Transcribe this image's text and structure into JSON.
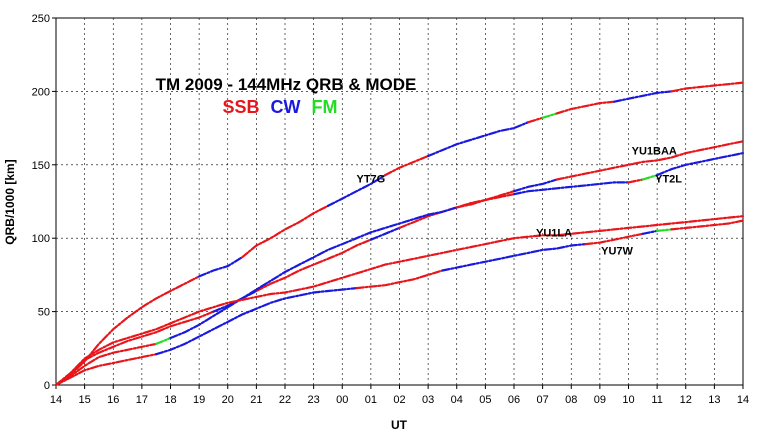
{
  "chart_data": {
    "type": "line",
    "title": "TM 2009 - 144MHz QRB & MODE",
    "mode_legend": [
      {
        "name": "SSB",
        "color": "#e8161b"
      },
      {
        "name": "CW",
        "color": "#1a1adf"
      },
      {
        "name": "FM",
        "color": "#22dd22"
      }
    ],
    "xlabel": "UT",
    "ylabel": "QRB/1000 [km]",
    "ylim": [
      0,
      250
    ],
    "yticks": [
      0,
      50,
      100,
      150,
      200,
      250
    ],
    "xlim": [
      0,
      24
    ],
    "xtick_labels": [
      "14",
      "15",
      "16",
      "17",
      "18",
      "19",
      "20",
      "21",
      "22",
      "23",
      "00",
      "01",
      "02",
      "03",
      "04",
      "05",
      "06",
      "07",
      "08",
      "09",
      "10",
      "11",
      "12",
      "13",
      "14"
    ],
    "grid": true,
    "series": [
      {
        "name": "YT7G",
        "label_at": [
          11,
          138
        ],
        "points": [
          [
            0,
            0
          ],
          [
            0.5,
            7
          ],
          [
            1,
            16
          ],
          [
            1.5,
            28
          ],
          [
            2,
            38
          ],
          [
            2.5,
            46
          ],
          [
            3,
            53
          ],
          [
            3.5,
            59
          ],
          [
            4,
            64
          ],
          [
            4.5,
            69
          ],
          [
            5,
            74
          ],
          [
            5.5,
            78
          ],
          [
            6,
            81
          ],
          [
            6.5,
            87
          ],
          [
            7,
            95
          ],
          [
            7.5,
            100
          ],
          [
            8,
            106
          ],
          [
            8.5,
            111
          ],
          [
            9,
            117
          ],
          [
            9.5,
            122
          ],
          [
            10,
            127
          ],
          [
            10.5,
            132
          ],
          [
            11,
            137
          ],
          [
            11.5,
            143
          ],
          [
            12,
            148
          ],
          [
            12.5,
            152
          ],
          [
            13,
            156
          ],
          [
            13.5,
            160
          ],
          [
            14,
            164
          ],
          [
            14.5,
            167
          ],
          [
            15,
            170
          ],
          [
            15.5,
            173
          ],
          [
            16,
            175
          ],
          [
            16.5,
            179
          ],
          [
            17,
            182
          ],
          [
            17.5,
            185
          ],
          [
            18,
            188
          ],
          [
            18.5,
            190
          ],
          [
            19,
            192
          ],
          [
            19.5,
            193
          ],
          [
            20,
            195
          ],
          [
            20.5,
            197
          ],
          [
            21,
            199
          ],
          [
            21.5,
            200
          ],
          [
            22,
            202
          ],
          [
            22.5,
            203
          ],
          [
            23,
            204
          ],
          [
            23.5,
            205
          ],
          [
            24,
            206
          ]
        ],
        "mode_segments": [
          {
            "from": 0,
            "to": 5,
            "mode": "SSB"
          },
          {
            "from": 5,
            "to": 6.5,
            "mode": "CW"
          },
          {
            "from": 6.5,
            "to": 9.5,
            "mode": "SSB"
          },
          {
            "from": 9.5,
            "to": 11.5,
            "mode": "CW"
          },
          {
            "from": 11.5,
            "to": 13,
            "mode": "SSB"
          },
          {
            "from": 13,
            "to": 16.5,
            "mode": "CW"
          },
          {
            "from": 16.5,
            "to": 17,
            "mode": "SSB"
          },
          {
            "from": 17,
            "to": 17.5,
            "mode": "FM"
          },
          {
            "from": 17.5,
            "to": 19.5,
            "mode": "SSB"
          },
          {
            "from": 19.5,
            "to": 21.5,
            "mode": "CW"
          },
          {
            "from": 21.5,
            "to": 24,
            "mode": "SSB"
          }
        ]
      },
      {
        "name": "YU1BAA",
        "label_at": [
          20.9,
          157
        ],
        "points": [
          [
            0,
            0
          ],
          [
            0.5,
            8
          ],
          [
            1,
            17
          ],
          [
            1.5,
            22
          ],
          [
            2,
            26
          ],
          [
            2.5,
            30
          ],
          [
            3,
            33
          ],
          [
            3.5,
            36
          ],
          [
            4,
            40
          ],
          [
            4.5,
            43
          ],
          [
            5,
            46
          ],
          [
            5.5,
            50
          ],
          [
            6,
            54
          ],
          [
            6.5,
            59
          ],
          [
            7,
            64
          ],
          [
            7.5,
            69
          ],
          [
            8,
            73
          ],
          [
            8.5,
            78
          ],
          [
            9,
            82
          ],
          [
            9.5,
            86
          ],
          [
            10,
            90
          ],
          [
            10.5,
            95
          ],
          [
            11,
            99
          ],
          [
            11.5,
            103
          ],
          [
            12,
            107
          ],
          [
            12.5,
            111
          ],
          [
            13,
            115
          ],
          [
            13.5,
            118
          ],
          [
            14,
            121
          ],
          [
            14.5,
            124
          ],
          [
            15,
            126
          ],
          [
            15.5,
            129
          ],
          [
            16,
            132
          ],
          [
            16.5,
            135
          ],
          [
            17,
            137
          ],
          [
            17.5,
            140
          ],
          [
            18,
            142
          ],
          [
            18.5,
            144
          ],
          [
            19,
            146
          ],
          [
            19.5,
            148
          ],
          [
            20,
            150
          ],
          [
            20.5,
            152
          ],
          [
            21,
            153
          ],
          [
            21.5,
            155
          ],
          [
            22,
            158
          ],
          [
            22.5,
            160
          ],
          [
            23,
            162
          ],
          [
            23.5,
            164
          ],
          [
            24,
            166
          ]
        ],
        "mode_segments": [
          {
            "from": 0,
            "to": 5.5,
            "mode": "SSB"
          },
          {
            "from": 5.5,
            "to": 7,
            "mode": "CW"
          },
          {
            "from": 7,
            "to": 11,
            "mode": "SSB"
          },
          {
            "from": 11,
            "to": 12,
            "mode": "CW"
          },
          {
            "from": 12,
            "to": 16,
            "mode": "SSB"
          },
          {
            "from": 16,
            "to": 17.5,
            "mode": "CW"
          },
          {
            "from": 17.5,
            "to": 24,
            "mode": "SSB"
          }
        ]
      },
      {
        "name": "YT2L",
        "label_at": [
          21.4,
          138
        ],
        "points": [
          [
            0,
            0
          ],
          [
            0.5,
            6
          ],
          [
            1,
            13
          ],
          [
            1.5,
            19
          ],
          [
            2,
            22
          ],
          [
            2.5,
            24
          ],
          [
            3,
            26
          ],
          [
            3.5,
            28
          ],
          [
            4,
            32
          ],
          [
            4.5,
            36
          ],
          [
            5,
            41
          ],
          [
            5.5,
            47
          ],
          [
            6,
            53
          ],
          [
            6.5,
            59
          ],
          [
            7,
            65
          ],
          [
            7.5,
            71
          ],
          [
            8,
            77
          ],
          [
            8.5,
            82
          ],
          [
            9,
            87
          ],
          [
            9.5,
            92
          ],
          [
            10,
            96
          ],
          [
            10.5,
            100
          ],
          [
            11,
            104
          ],
          [
            11.5,
            107
          ],
          [
            12,
            110
          ],
          [
            12.5,
            113
          ],
          [
            13,
            116
          ],
          [
            13.5,
            118
          ],
          [
            14,
            121
          ],
          [
            14.5,
            123
          ],
          [
            15,
            126
          ],
          [
            15.5,
            128
          ],
          [
            16,
            130
          ],
          [
            16.5,
            132
          ],
          [
            17,
            133
          ],
          [
            17.5,
            134
          ],
          [
            18,
            135
          ],
          [
            18.5,
            136
          ],
          [
            19,
            137
          ],
          [
            19.5,
            138
          ],
          [
            20,
            138
          ],
          [
            20.5,
            140
          ],
          [
            21,
            143
          ],
          [
            21.5,
            147
          ],
          [
            22,
            150
          ],
          [
            22.5,
            152
          ],
          [
            23,
            154
          ],
          [
            23.5,
            156
          ],
          [
            24,
            158
          ]
        ],
        "mode_segments": [
          {
            "from": 0,
            "to": 3.5,
            "mode": "SSB"
          },
          {
            "from": 3.5,
            "to": 4,
            "mode": "FM"
          },
          {
            "from": 4,
            "to": 14,
            "mode": "CW"
          },
          {
            "from": 14,
            "to": 16,
            "mode": "SSB"
          },
          {
            "from": 16,
            "to": 20,
            "mode": "CW"
          },
          {
            "from": 20,
            "to": 20.5,
            "mode": "SSB"
          },
          {
            "from": 20.5,
            "to": 21,
            "mode": "FM"
          },
          {
            "from": 21,
            "to": 24,
            "mode": "CW"
          }
        ]
      },
      {
        "name": "YU1LA",
        "label_at": [
          17.4,
          101
        ],
        "points": [
          [
            0,
            0
          ],
          [
            0.5,
            8
          ],
          [
            1,
            18
          ],
          [
            1.5,
            24
          ],
          [
            2,
            29
          ],
          [
            2.5,
            32
          ],
          [
            3,
            35
          ],
          [
            3.5,
            38
          ],
          [
            4,
            42
          ],
          [
            4.5,
            46
          ],
          [
            5,
            50
          ],
          [
            5.5,
            53
          ],
          [
            6,
            56
          ],
          [
            6.5,
            58
          ],
          [
            7,
            60
          ],
          [
            7.5,
            62
          ],
          [
            8,
            63
          ],
          [
            8.5,
            65
          ],
          [
            9,
            67
          ],
          [
            9.5,
            70
          ],
          [
            10,
            73
          ],
          [
            10.5,
            76
          ],
          [
            11,
            79
          ],
          [
            11.5,
            82
          ],
          [
            12,
            84
          ],
          [
            12.5,
            86
          ],
          [
            13,
            88
          ],
          [
            13.5,
            90
          ],
          [
            14,
            92
          ],
          [
            14.5,
            94
          ],
          [
            15,
            96
          ],
          [
            15.5,
            98
          ],
          [
            16,
            100
          ],
          [
            16.5,
            101
          ],
          [
            17,
            102
          ],
          [
            17.5,
            102
          ],
          [
            18,
            103
          ],
          [
            18.5,
            104
          ],
          [
            19,
            105
          ],
          [
            19.5,
            106
          ],
          [
            20,
            107
          ],
          [
            20.5,
            108
          ],
          [
            21,
            109
          ],
          [
            21.5,
            110
          ],
          [
            22,
            111
          ],
          [
            22.5,
            112
          ],
          [
            23,
            113
          ],
          [
            23.5,
            114
          ],
          [
            24,
            115
          ]
        ],
        "mode_segments": [
          {
            "from": 0,
            "to": 24,
            "mode": "SSB"
          }
        ]
      },
      {
        "name": "YU7W",
        "label_at": [
          19.6,
          89
        ],
        "points": [
          [
            0,
            0
          ],
          [
            0.5,
            5
          ],
          [
            1,
            10
          ],
          [
            1.5,
            13
          ],
          [
            2,
            15
          ],
          [
            2.5,
            17
          ],
          [
            3,
            19
          ],
          [
            3.5,
            21
          ],
          [
            4,
            24
          ],
          [
            4.5,
            28
          ],
          [
            5,
            33
          ],
          [
            5.5,
            38
          ],
          [
            6,
            43
          ],
          [
            6.5,
            48
          ],
          [
            7,
            52
          ],
          [
            7.5,
            56
          ],
          [
            8,
            59
          ],
          [
            8.5,
            61
          ],
          [
            9,
            63
          ],
          [
            9.5,
            64
          ],
          [
            10,
            65
          ],
          [
            10.5,
            66
          ],
          [
            11,
            67
          ],
          [
            11.5,
            68
          ],
          [
            12,
            70
          ],
          [
            12.5,
            72
          ],
          [
            13,
            75
          ],
          [
            13.5,
            78
          ],
          [
            14,
            80
          ],
          [
            14.5,
            82
          ],
          [
            15,
            84
          ],
          [
            15.5,
            86
          ],
          [
            16,
            88
          ],
          [
            16.5,
            90
          ],
          [
            17,
            92
          ],
          [
            17.5,
            93
          ],
          [
            18,
            95
          ],
          [
            18.5,
            96
          ],
          [
            19,
            97
          ],
          [
            19.5,
            99
          ],
          [
            20,
            101
          ],
          [
            20.5,
            103
          ],
          [
            21,
            105
          ],
          [
            21.5,
            106
          ],
          [
            22,
            107
          ],
          [
            22.5,
            108
          ],
          [
            23,
            109
          ],
          [
            23.5,
            110
          ],
          [
            24,
            112
          ]
        ],
        "mode_segments": [
          {
            "from": 0,
            "to": 3.5,
            "mode": "SSB"
          },
          {
            "from": 3.5,
            "to": 10.5,
            "mode": "CW"
          },
          {
            "from": 10.5,
            "to": 13.5,
            "mode": "SSB"
          },
          {
            "from": 13.5,
            "to": 18.5,
            "mode": "CW"
          },
          {
            "from": 18.5,
            "to": 20.5,
            "mode": "SSB"
          },
          {
            "from": 20.5,
            "to": 21,
            "mode": "CW"
          },
          {
            "from": 21,
            "to": 21.5,
            "mode": "FM"
          },
          {
            "from": 21.5,
            "to": 24,
            "mode": "SSB"
          }
        ]
      }
    ]
  }
}
